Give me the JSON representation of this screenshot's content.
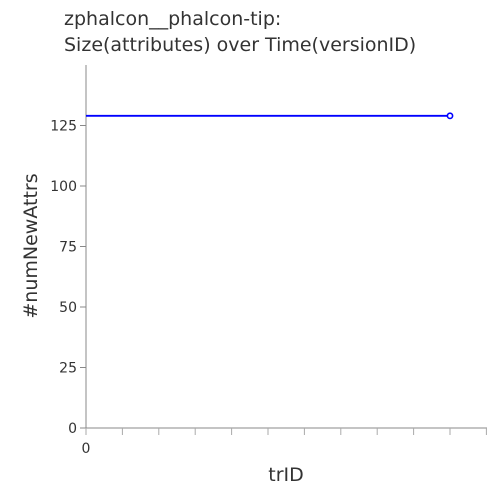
{
  "chart_data": {
    "type": "line",
    "title_line1": "zphalcon__phalcon-tip:",
    "title_line2": "Size(attributes) over Time(versionID)",
    "xlabel": "trID",
    "ylabel": "#numNewAttrs",
    "xlim": [
      0,
      10
    ],
    "ylim": [
      0,
      150
    ],
    "x_tick_labels": [
      "0"
    ],
    "y_ticks": [
      0,
      25,
      50,
      75,
      100,
      125
    ],
    "y_tick_labels": [
      "0",
      "25",
      "50",
      "75",
      "100",
      "125"
    ],
    "grid": false,
    "series": [
      {
        "color": "#0000ff",
        "x": [
          0,
          10
        ],
        "y": [
          129,
          129
        ],
        "markers": [
          false,
          true
        ]
      }
    ]
  }
}
